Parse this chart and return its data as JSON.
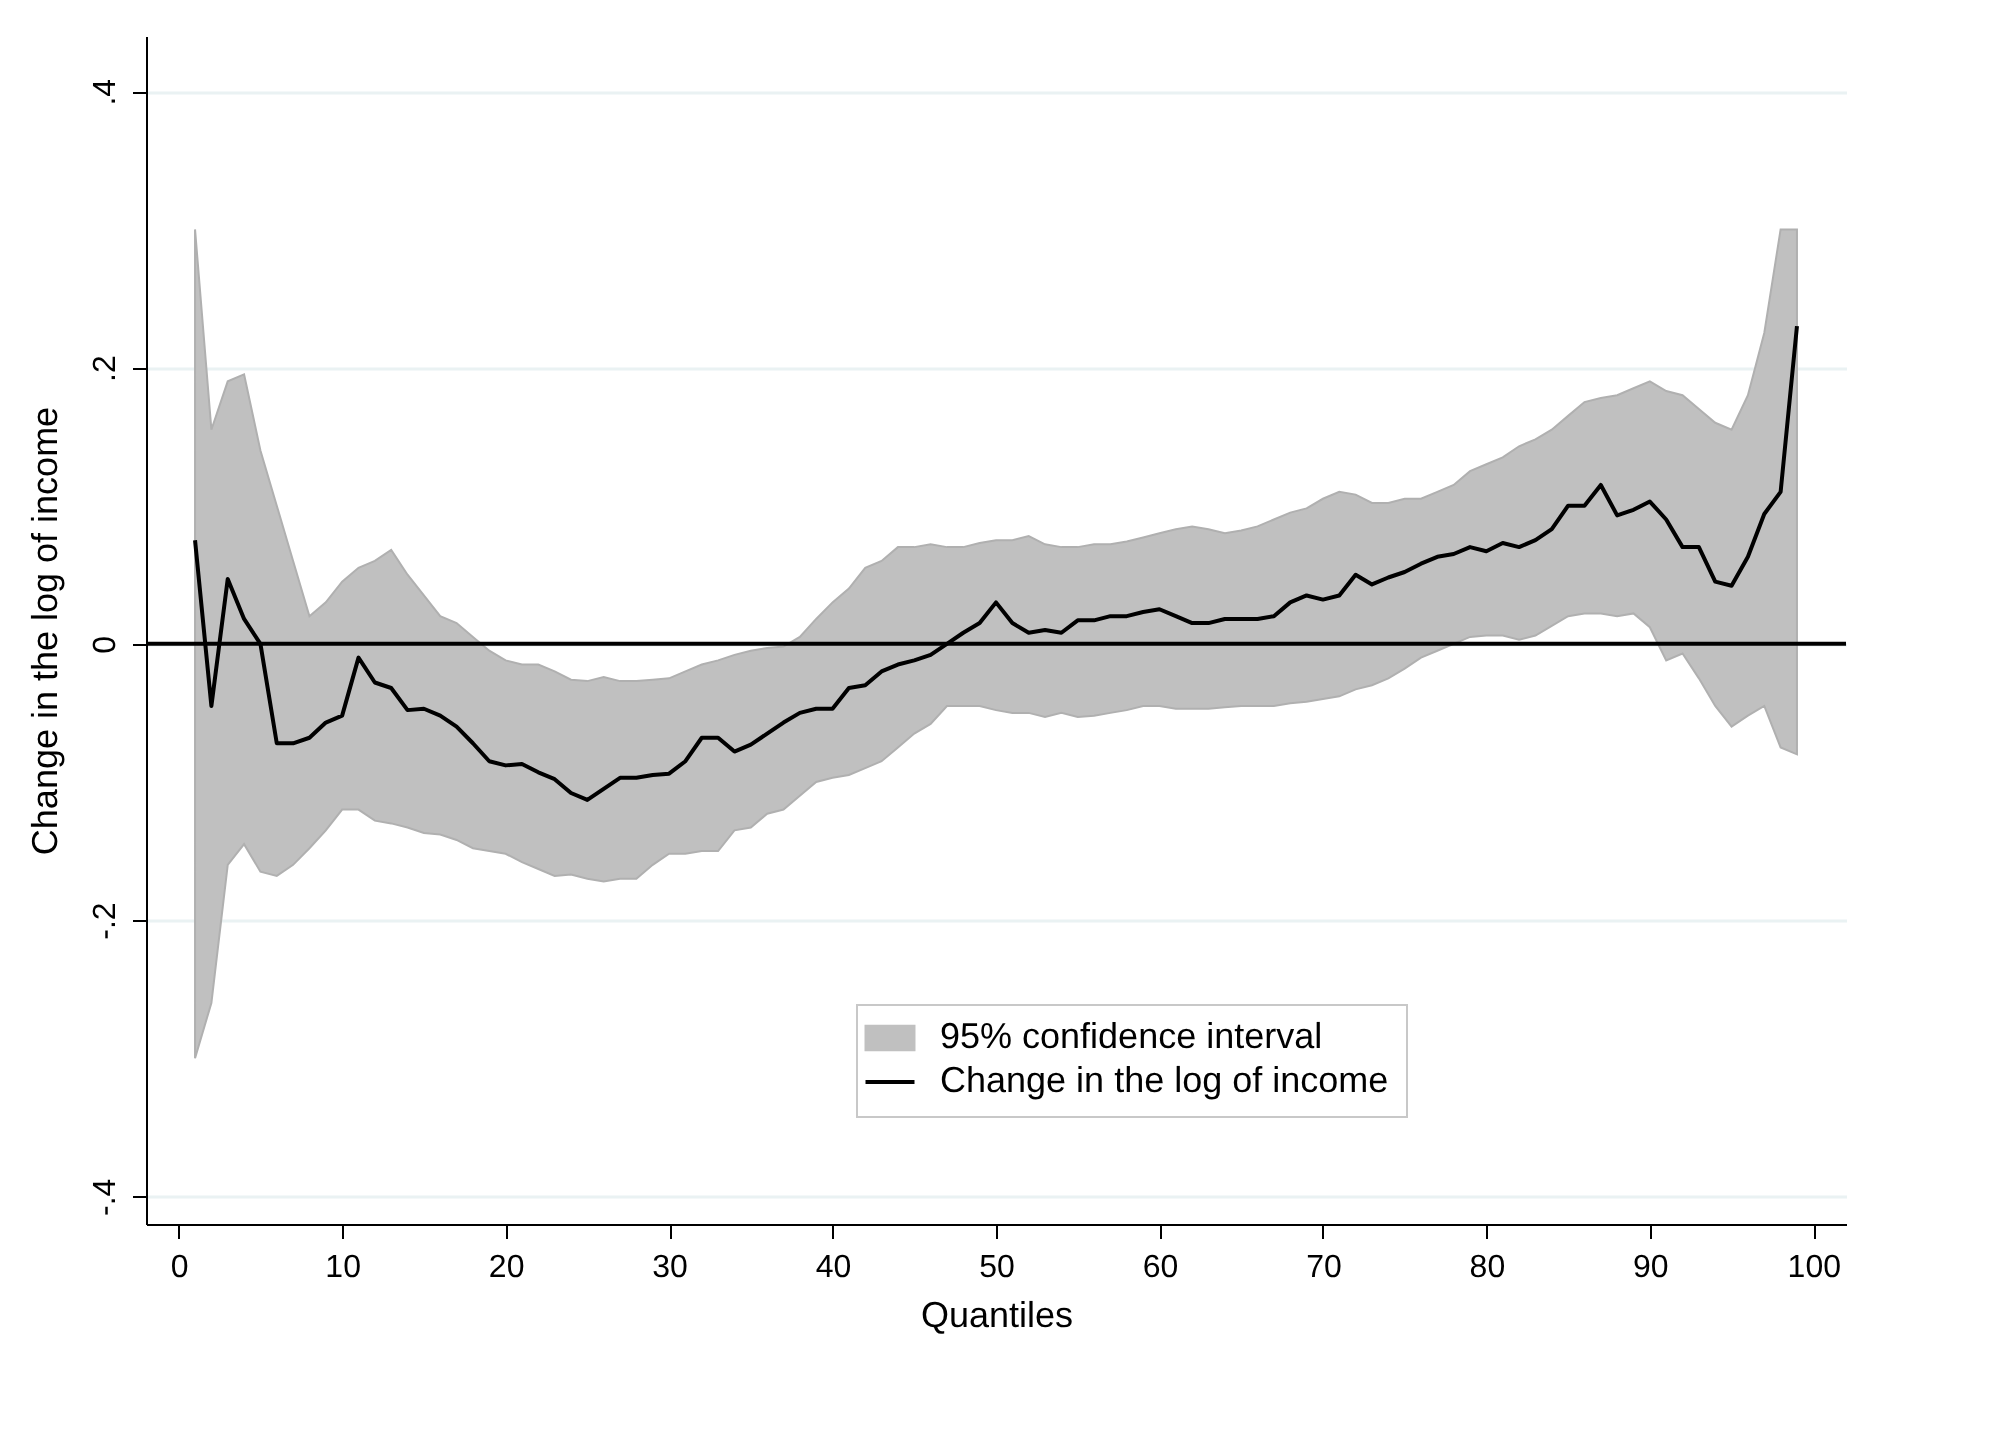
{
  "chart_data": {
    "type": "line",
    "xlabel": "Quantiles",
    "ylabel": "Change in the log of income",
    "x": [
      1,
      2,
      3,
      4,
      5,
      6,
      7,
      8,
      9,
      10,
      11,
      12,
      13,
      14,
      15,
      16,
      17,
      18,
      19,
      20,
      21,
      22,
      23,
      24,
      25,
      26,
      27,
      28,
      29,
      30,
      31,
      32,
      33,
      34,
      35,
      36,
      37,
      38,
      39,
      40,
      41,
      42,
      43,
      44,
      45,
      46,
      47,
      48,
      49,
      50,
      51,
      52,
      53,
      54,
      55,
      56,
      57,
      58,
      59,
      60,
      61,
      62,
      63,
      64,
      65,
      66,
      67,
      68,
      69,
      70,
      71,
      72,
      73,
      74,
      75,
      76,
      77,
      78,
      79,
      80,
      81,
      82,
      83,
      84,
      85,
      86,
      87,
      88,
      89,
      90,
      91,
      92,
      93,
      94,
      95,
      96,
      97,
      98,
      99
    ],
    "series": [
      {
        "name": "95% confidence interval",
        "type": "area",
        "color": "#c0c0c0",
        "values": [
          null,
          null,
          null,
          null,
          null,
          null,
          null,
          null,
          null,
          null,
          null,
          null,
          null,
          null,
          null,
          null,
          null,
          null,
          null,
          null,
          null,
          null,
          null,
          null,
          null,
          null,
          null,
          null,
          null,
          null,
          null,
          null,
          null,
          null,
          null,
          null,
          null,
          null,
          null,
          null,
          null,
          null,
          null,
          null,
          null,
          null,
          null,
          null,
          null,
          null,
          null,
          null,
          null,
          null,
          null,
          null,
          null,
          null,
          null,
          null,
          null,
          null,
          null,
          null,
          null,
          null,
          null,
          null,
          null,
          null,
          null,
          null,
          null,
          null,
          null,
          null,
          null,
          null,
          null,
          null,
          null,
          null,
          null,
          null,
          null,
          null,
          null,
          null,
          null,
          null,
          null,
          null,
          null,
          null,
          null,
          null,
          null,
          null,
          null
        ],
        "upper": [
          0.3,
          0.155,
          0.19,
          0.195,
          0.14,
          0.1,
          0.06,
          0.02,
          0.03,
          0.045,
          0.055,
          0.06,
          0.068,
          0.05,
          0.035,
          0.02,
          0.015,
          0.005,
          -0.005,
          -0.012,
          -0.015,
          -0.015,
          -0.02,
          -0.026,
          -0.027,
          -0.024,
          -0.027,
          -0.027,
          -0.026,
          -0.025,
          -0.02,
          -0.015,
          -0.012,
          -0.008,
          -0.005,
          -0.003,
          -0.002,
          0.005,
          0.018,
          0.03,
          0.04,
          0.055,
          0.06,
          0.07,
          0.07,
          0.072,
          0.07,
          0.07,
          0.073,
          0.075,
          0.075,
          0.078,
          0.072,
          0.07,
          0.07,
          0.072,
          0.072,
          0.074,
          0.077,
          0.08,
          0.083,
          0.085,
          0.083,
          0.08,
          0.082,
          0.085,
          0.09,
          0.095,
          0.098,
          0.105,
          0.11,
          0.108,
          0.102,
          0.102,
          0.105,
          0.105,
          0.11,
          0.115,
          0.125,
          0.13,
          0.135,
          0.143,
          0.148,
          0.155,
          0.165,
          0.175,
          0.178,
          0.18,
          0.185,
          0.19,
          0.183,
          0.18,
          0.17,
          0.16,
          0.155,
          0.18,
          0.225,
          0.3,
          0.3
        ],
        "lower": [
          -0.3,
          -0.26,
          -0.16,
          -0.145,
          -0.165,
          -0.168,
          -0.16,
          -0.148,
          -0.135,
          -0.12,
          -0.12,
          -0.128,
          -0.13,
          -0.133,
          -0.137,
          -0.138,
          -0.142,
          -0.148,
          -0.15,
          -0.152,
          -0.158,
          -0.163,
          -0.168,
          -0.167,
          -0.17,
          -0.172,
          -0.17,
          -0.17,
          -0.16,
          -0.152,
          -0.152,
          -0.15,
          -0.15,
          -0.135,
          -0.133,
          -0.123,
          -0.12,
          -0.11,
          -0.1,
          -0.097,
          -0.095,
          -0.09,
          -0.085,
          -0.075,
          -0.065,
          -0.058,
          -0.045,
          -0.045,
          -0.045,
          -0.048,
          -0.05,
          -0.05,
          -0.053,
          -0.05,
          -0.053,
          -0.052,
          -0.05,
          -0.048,
          -0.045,
          -0.045,
          -0.047,
          -0.047,
          -0.047,
          -0.046,
          -0.045,
          -0.045,
          -0.045,
          -0.043,
          -0.042,
          -0.04,
          -0.038,
          -0.033,
          -0.03,
          -0.025,
          -0.018,
          -0.01,
          -0.005,
          0,
          0.005,
          0.006,
          0.006,
          0.003,
          0.006,
          0.013,
          0.02,
          0.022,
          0.022,
          0.02,
          0.022,
          0.012,
          -0.012,
          -0.007,
          -0.025,
          -0.045,
          -0.06,
          -0.052,
          -0.045,
          -0.075,
          -0.08
        ]
      },
      {
        "name": "Change in the log of income",
        "color": "#000000",
        "values": [
          0.075,
          -0.045,
          0.047,
          0.018,
          0,
          -0.072,
          -0.072,
          -0.068,
          -0.057,
          -0.052,
          -0.01,
          -0.028,
          -0.032,
          -0.048,
          -0.047,
          -0.052,
          -0.06,
          -0.072,
          -0.085,
          -0.088,
          -0.087,
          -0.093,
          -0.098,
          -0.108,
          -0.113,
          -0.105,
          -0.097,
          -0.097,
          -0.095,
          -0.094,
          -0.085,
          -0.068,
          -0.068,
          -0.078,
          -0.073,
          -0.065,
          -0.057,
          -0.05,
          -0.047,
          -0.047,
          -0.032,
          -0.03,
          -0.02,
          -0.015,
          -0.012,
          -0.008,
          0,
          0.008,
          0.015,
          0.03,
          0.015,
          0.008,
          0.01,
          0.008,
          0.017,
          0.017,
          0.02,
          0.02,
          0.023,
          0.025,
          0.02,
          0.015,
          0.015,
          0.018,
          0.018,
          0.018,
          0.02,
          0.03,
          0.035,
          0.032,
          0.035,
          0.05,
          0.043,
          0.048,
          0.052,
          0.058,
          0.063,
          0.065,
          0.07,
          0.067,
          0.073,
          0.07,
          0.075,
          0.083,
          0.1,
          0.1,
          0.115,
          0.093,
          0.097,
          0.103,
          0.09,
          0.07,
          0.07,
          0.045,
          0.042,
          0.063,
          0.094,
          0.11,
          0.23
        ]
      }
    ],
    "ref_lines": [
      {
        "axis": "y",
        "value": 0,
        "color": "#000000"
      }
    ],
    "xlim": [
      -2,
      102
    ],
    "xticks": [
      0,
      10,
      20,
      30,
      40,
      50,
      60,
      70,
      80,
      90,
      100
    ],
    "ylim": [
      -0.42,
      0.44
    ],
    "yticks": [
      {
        "value": -0.4,
        "label": "-.4"
      },
      {
        "value": -0.2,
        "label": "-.2"
      },
      0,
      {
        "value": 0.2,
        "label": ".2"
      },
      {
        "value": 0.4,
        "label": ".4"
      }
    ],
    "grid": "y",
    "legend": "bottom",
    "line_style": "solid"
  }
}
